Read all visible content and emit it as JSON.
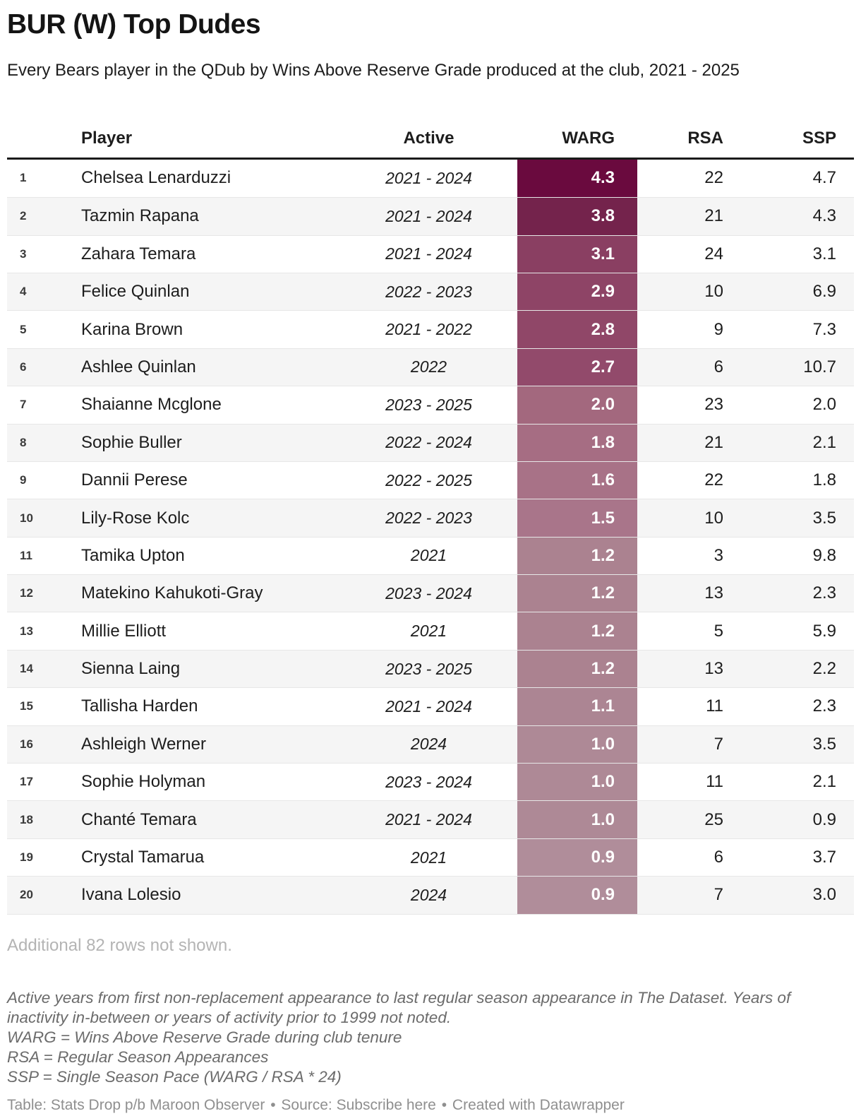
{
  "chart_data": {
    "type": "table",
    "title": "BUR (W) Top Dudes",
    "subtitle": "Every Bears player in the QDub by Wins Above Reserve Grade produced at the club, 2021 - 2025",
    "columns": [
      "Player",
      "Active",
      "WARG",
      "RSA",
      "SSP"
    ],
    "heatmap_column": "WARG",
    "heatmap_scale": {
      "max_color": "#6a0a3e",
      "min_color": "#b08d9a",
      "value_text_color": "#ffffff"
    },
    "rows": [
      {
        "rank": 1,
        "player": "Chelsea Lenarduzzi",
        "active": "2021 - 2024",
        "warg": "4.3",
        "warg_color": "#6a0a3e",
        "rsa": "22",
        "ssp": "4.7"
      },
      {
        "rank": 2,
        "player": "Tazmin Rapana",
        "active": "2021 - 2024",
        "warg": "3.8",
        "warg_color": "#74234c",
        "rsa": "21",
        "ssp": "4.3"
      },
      {
        "rank": 3,
        "player": "Zahara Temara",
        "active": "2021 - 2024",
        "warg": "3.1",
        "warg_color": "#8a3f62",
        "rsa": "24",
        "ssp": "3.1"
      },
      {
        "rank": 4,
        "player": "Felice Quinlan",
        "active": "2022 - 2023",
        "warg": "2.9",
        "warg_color": "#8e4466",
        "rsa": "10",
        "ssp": "6.9"
      },
      {
        "rank": 5,
        "player": "Karina Brown",
        "active": "2021 - 2022",
        "warg": "2.8",
        "warg_color": "#904768",
        "rsa": "9",
        "ssp": "7.3"
      },
      {
        "rank": 6,
        "player": "Ashlee Quinlan",
        "active": "2022",
        "warg": "2.7",
        "warg_color": "#924a6b",
        "rsa": "6",
        "ssp": "10.7"
      },
      {
        "rank": 7,
        "player": "Shaianne Mcglone",
        "active": "2023 - 2025",
        "warg": "2.0",
        "warg_color": "#a3687e",
        "rsa": "23",
        "ssp": "2.0"
      },
      {
        "rank": 8,
        "player": "Sophie Buller",
        "active": "2022 - 2024",
        "warg": "1.8",
        "warg_color": "#a66d83",
        "rsa": "21",
        "ssp": "2.1"
      },
      {
        "rank": 9,
        "player": "Dannii Perese",
        "active": "2022 - 2025",
        "warg": "1.6",
        "warg_color": "#a87287",
        "rsa": "22",
        "ssp": "1.8"
      },
      {
        "rank": 10,
        "player": "Lily-Rose Kolc",
        "active": "2022 - 2023",
        "warg": "1.5",
        "warg_color": "#a9758a",
        "rsa": "10",
        "ssp": "3.5"
      },
      {
        "rank": 11,
        "player": "Tamika Upton",
        "active": "2021",
        "warg": "1.2",
        "warg_color": "#ab8290",
        "rsa": "3",
        "ssp": "9.8"
      },
      {
        "rank": 12,
        "player": "Matekino Kahukoti-Gray",
        "active": "2023 - 2024",
        "warg": "1.2",
        "warg_color": "#ab8290",
        "rsa": "13",
        "ssp": "2.3"
      },
      {
        "rank": 13,
        "player": "Millie Elliott",
        "active": "2021",
        "warg": "1.2",
        "warg_color": "#ab8290",
        "rsa": "5",
        "ssp": "5.9"
      },
      {
        "rank": 14,
        "player": "Sienna Laing",
        "active": "2023 - 2025",
        "warg": "1.2",
        "warg_color": "#ab8290",
        "rsa": "13",
        "ssp": "2.2"
      },
      {
        "rank": 15,
        "player": "Tallisha Harden",
        "active": "2021 - 2024",
        "warg": "1.1",
        "warg_color": "#ac8593",
        "rsa": "11",
        "ssp": "2.3"
      },
      {
        "rank": 16,
        "player": "Ashleigh Werner",
        "active": "2024",
        "warg": "1.0",
        "warg_color": "#ae8996",
        "rsa": "7",
        "ssp": "3.5"
      },
      {
        "rank": 17,
        "player": "Sophie Holyman",
        "active": "2023 - 2024",
        "warg": "1.0",
        "warg_color": "#ae8996",
        "rsa": "11",
        "ssp": "2.1"
      },
      {
        "rank": 18,
        "player": "Chanté Temara",
        "active": "2021 - 2024",
        "warg": "1.0",
        "warg_color": "#ae8996",
        "rsa": "25",
        "ssp": "0.9"
      },
      {
        "rank": 19,
        "player": "Crystal Tamarua",
        "active": "2021",
        "warg": "0.9",
        "warg_color": "#b08d9a",
        "rsa": "6",
        "ssp": "3.7"
      },
      {
        "rank": 20,
        "player": "Ivana Lolesio",
        "active": "2024",
        "warg": "0.9",
        "warg_color": "#b08d9a",
        "rsa": "7",
        "ssp": "3.0"
      }
    ]
  },
  "after_table_note": "Additional 82 rows not shown.",
  "notes": {
    "paragraph": "Active years from first non-replacement appearance to last regular season appearance in The Dataset. Years of inactivity in-between or years of activity prior to 1999 not noted.",
    "line_warg": "WARG = Wins Above Reserve Grade during club tenure",
    "line_rsa": "RSA = Regular Season Appearances",
    "line_ssp": "SSP = Single Season Pace (WARG / RSA * 24)"
  },
  "footer": {
    "table_credit": "Table: Stats Drop p/b Maroon Observer",
    "sep": "•",
    "source_prefix": "Source:",
    "source_link": "Subscribe here",
    "created": "Created with Datawrapper"
  },
  "colors": {
    "header_rule": "#1a1a1a",
    "row_alt_background": "#f5f5f5",
    "row_border": "#e7e7e7",
    "muted_note": "#b4b4b4",
    "footnote_text": "#6b6b6b",
    "footer_text": "#8f8f8f"
  }
}
